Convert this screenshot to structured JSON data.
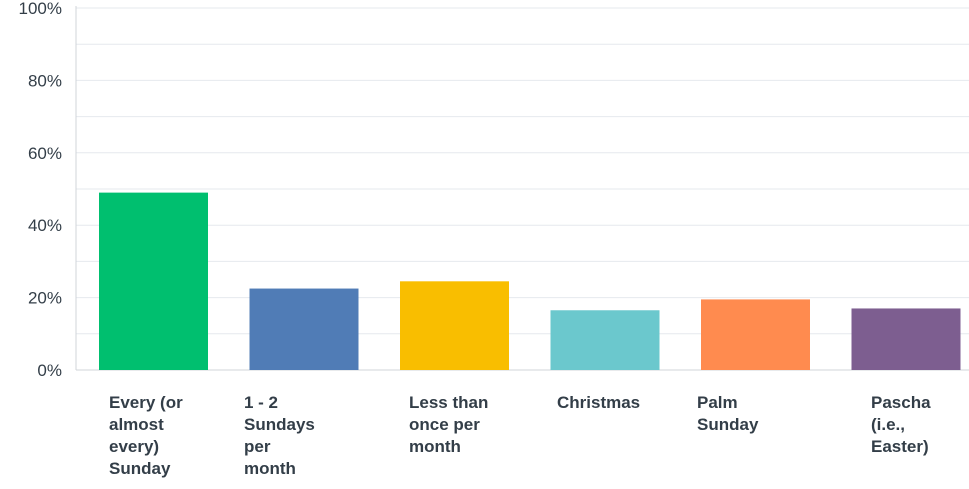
{
  "chart_data": {
    "type": "bar",
    "title": "",
    "xlabel": "",
    "ylabel": "",
    "categories": [
      "Every (or almost every) Sunday",
      "1 - 2 Sundays per month",
      "Less than once per month",
      "Christmas",
      "Palm Sunday",
      "Pascha (i.e., Easter)"
    ],
    "category_lines": [
      [
        "Every (or",
        "almost",
        "every)",
        "Sunday"
      ],
      [
        "1 - 2",
        "Sundays",
        "per",
        "month"
      ],
      [
        "Less than",
        "once per",
        "month"
      ],
      [
        "Christmas"
      ],
      [
        "Palm",
        "Sunday"
      ],
      [
        "Pascha",
        "(i.e.,",
        "Easter)"
      ]
    ],
    "values": [
      49,
      22.5,
      24.5,
      16.5,
      19.5,
      17
    ],
    "colors": [
      "#00bf6f",
      "#507cb6",
      "#f9be00",
      "#6bc8cd",
      "#ff8b4f",
      "#7d5e90"
    ],
    "ylim": [
      0,
      100
    ],
    "yticks": [
      0,
      20,
      40,
      60,
      80,
      100
    ],
    "ytick_labels": [
      "0%",
      "20%",
      "40%",
      "60%",
      "80%",
      "100%"
    ],
    "grid": true,
    "unit": "%"
  }
}
